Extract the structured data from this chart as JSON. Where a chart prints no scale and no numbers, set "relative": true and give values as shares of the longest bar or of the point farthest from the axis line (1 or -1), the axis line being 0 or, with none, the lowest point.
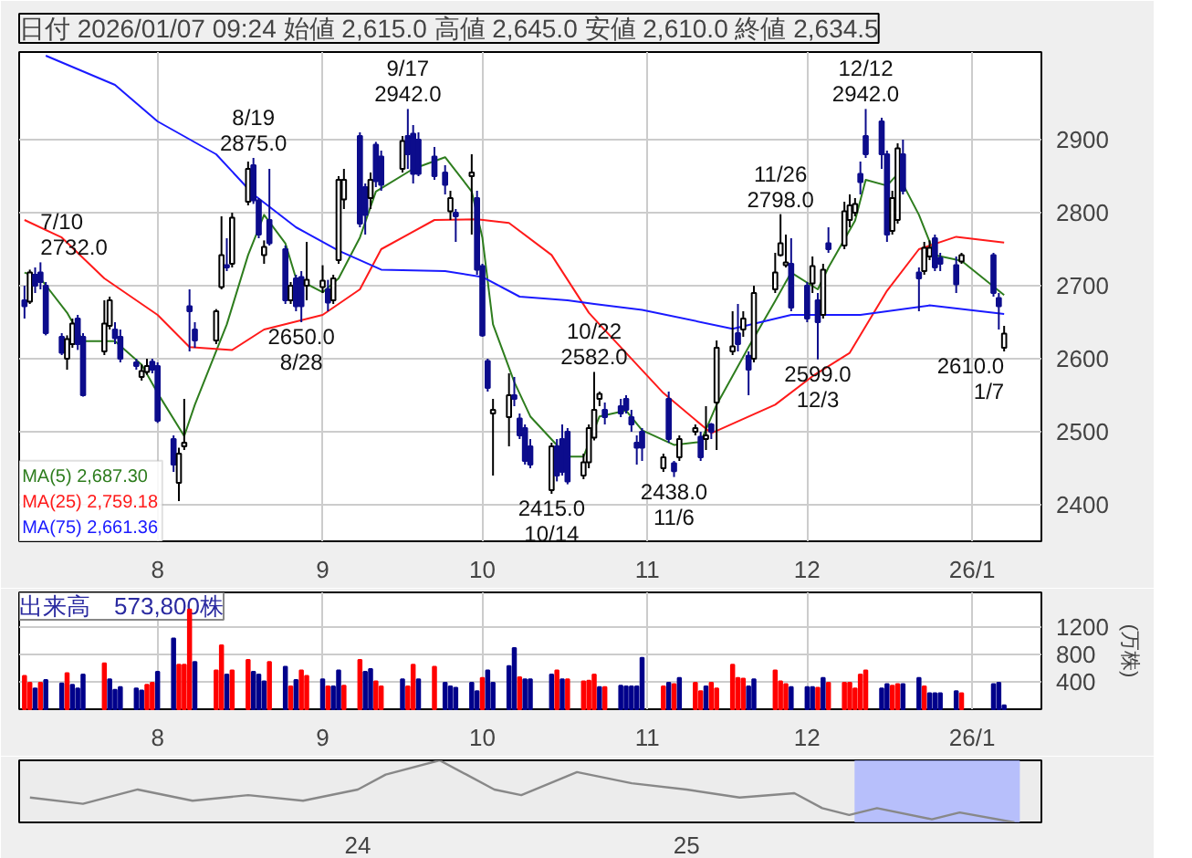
{
  "chart_data": [
    {
      "type": "candlestick",
      "title": "日付 2026/01/07 09:24 始値 2,615.0 高値 2,645.0 安値 2,610.0 終値 2,634.5",
      "grid": true,
      "legend": "bottom left",
      "colors": [
        "#0c0c8c",
        "#ffffff",
        "#0c0c8c",
        "#0c0c8c",
        "#0c0c8c",
        "#0c0c8c",
        "#ffffff",
        "#ffffff",
        "#0c0c8c",
        "#0c0c8c",
        "#ffffff",
        "#ffffff",
        "#0c0c8c",
        "#0c0c8c",
        "#0c0c8c",
        "#ffffff",
        "#ffffff",
        "#0c0c8c",
        "#0c0c8c",
        "#0c0c8c",
        "#ffffff",
        "#ffffff",
        "#0c0c8c",
        "#0c0c8c",
        "#ffffff",
        "#ffffff",
        "#0c0c8c",
        "#ffffff",
        "#ffffff",
        "#0c0c8c",
        "#0c0c8c",
        "#ffffff",
        "#0c0c8c",
        "#0c0c8c",
        "#ffffff",
        "#0c0c8c",
        "#0c0c8c",
        "#ffffff",
        "#ffffff",
        "#0c0c8c",
        "#ffffff",
        "#ffffff",
        "#ffffff",
        "#0c0c8c",
        "#0c0c8c",
        "#ffffff",
        "#0c0c8c",
        "#0c0c8c",
        "#ffffff",
        "#0c0c8c",
        "#0c0c8c",
        "#0c0c8c",
        "#0c0c8c",
        "#0c0c8c",
        "#ffffff",
        "#0c0c8c",
        "#ffffff",
        "#0c0c8c",
        "#0c0c8c",
        "#0c0c8c",
        "#ffffff",
        "#ffffff",
        "#0c0c8c",
        "#0c0c8c",
        "#0c0c8c",
        "#0c0c8c",
        "#ffffff",
        "#0c0c8c",
        "#0c0c8c",
        "#0c0c8c",
        "#ffffff",
        "#ffffff",
        "#ffffff",
        "#ffffff",
        "#0c0c8c",
        "#0c0c8c",
        "#0c0c8c",
        "#0c0c8c",
        "#0c0c8c",
        "#0c0c8c",
        "#ffffff",
        "#0c0c8c",
        "#0c0c8c",
        "#ffffff",
        "#ffffff",
        "#0c0c8c",
        "#ffffff",
        "#0c0c8c",
        "#ffffff",
        "#ffffff",
        "#0c0c8c",
        "#ffffff",
        "#0c0c8c",
        "#ffffff",
        "#ffffff",
        "#ffffff",
        "#ffffff",
        "#0c0c8c",
        "#0c0c8c",
        "#ffffff",
        "#0c0c8c",
        "#ffffff",
        "#0c0c8c",
        "#ffffff",
        "#ffffff",
        "#ffffff",
        "#0c0c8c",
        "#0c0c8c",
        "#0c0c8c",
        "#0c0c8c",
        "#ffffff",
        "#ffffff",
        "#0c0c8c",
        "#0c0c8c",
        "#ffffff",
        "#ffffff",
        "#0c0c8c",
        "#0c0c8c",
        "#0c0c8c",
        "#ffffff",
        "#0c0c8c",
        "#0c0c8c",
        "#ffffff"
      ],
      "x": [
        "2025-07-07",
        "2025-07-08",
        "2025-07-09",
        "2025-07-10",
        "2025-07-11",
        "2025-07-14",
        "2025-07-15",
        "2025-07-16",
        "2025-07-17",
        "2025-07-18",
        "2025-07-22",
        "2025-07-23",
        "2025-07-24",
        "2025-07-25",
        "2025-07-28",
        "2025-07-29",
        "2025-07-30",
        "2025-07-31",
        "2025-08-01",
        "2025-08-04",
        "2025-08-05",
        "2025-08-06",
        "2025-08-07",
        "2025-08-08",
        "2025-08-12",
        "2025-08-13",
        "2025-08-14",
        "2025-08-15",
        "2025-08-18",
        "2025-08-19",
        "2025-08-20",
        "2025-08-21",
        "2025-08-22",
        "2025-08-25",
        "2025-08-26",
        "2025-08-27",
        "2025-08-28",
        "2025-08-29",
        "2025-09-01",
        "2025-09-02",
        "2025-09-03",
        "2025-09-04",
        "2025-09-05",
        "2025-09-08",
        "2025-09-09",
        "2025-09-10",
        "2025-09-11",
        "2025-09-12",
        "2025-09-16",
        "2025-09-17",
        "2025-09-18",
        "2025-09-19",
        "2025-09-22",
        "2025-09-24",
        "2025-09-25",
        "2025-09-26",
        "2025-09-29",
        "2025-09-30",
        "2025-10-01",
        "2025-10-02",
        "2025-10-03",
        "2025-10-06",
        "2025-10-07",
        "2025-10-08",
        "2025-10-09",
        "2025-10-10",
        "2025-10-14",
        "2025-10-15",
        "2025-10-16",
        "2025-10-17",
        "2025-10-20",
        "2025-10-21",
        "2025-10-22",
        "2025-10-23",
        "2025-10-24",
        "2025-10-27",
        "2025-10-28",
        "2025-10-29",
        "2025-10-30",
        "2025-10-31",
        "2025-11-04",
        "2025-11-05",
        "2025-11-06",
        "2025-11-07",
        "2025-11-10",
        "2025-11-11",
        "2025-11-12",
        "2025-11-13",
        "2025-11-14",
        "2025-11-17",
        "2025-11-18",
        "2025-11-19",
        "2025-11-20",
        "2025-11-21",
        "2025-11-25",
        "2025-11-26",
        "2025-11-27",
        "2025-11-28",
        "2025-12-01",
        "2025-12-02",
        "2025-12-03",
        "2025-12-04",
        "2025-12-05",
        "2025-12-08",
        "2025-12-09",
        "2025-12-10",
        "2025-12-11",
        "2025-12-12",
        "2025-12-15",
        "2025-12-16",
        "2025-12-17",
        "2025-12-18",
        "2025-12-19",
        "2025-12-22",
        "2025-12-23",
        "2025-12-24",
        "2025-12-25",
        "2025-12-26",
        "2025-12-29",
        "2025-12-30",
        "2026-01-05",
        "2026-01-06",
        "2026-01-07"
      ],
      "ohlc": [
        [
          2680,
          2700,
          2655,
          2672
        ],
        [
          2678,
          2722,
          2675,
          2718
        ],
        [
          2715,
          2725,
          2690,
          2700
        ],
        [
          2718,
          2732,
          2695,
          2705
        ],
        [
          2700,
          2705,
          2632,
          2635
        ],
        [
          2630,
          2635,
          2605,
          2608
        ],
        [
          2600,
          2632,
          2585,
          2627
        ],
        [
          2620,
          2655,
          2615,
          2648
        ],
        [
          2655,
          2660,
          2612,
          2620
        ],
        [
          2630,
          2635,
          2548,
          2550
        ],
        [
          2610,
          2680,
          2605,
          2648
        ],
        [
          2645,
          2685,
          2640,
          2680
        ],
        [
          2640,
          2650,
          2620,
          2628
        ],
        [
          2630,
          2640,
          2595,
          2600
        ],
        [
          2595,
          2600,
          2585,
          2590
        ],
        [
          2575,
          2592,
          2570,
          2583
        ],
        [
          2582,
          2600,
          2578,
          2590
        ],
        [
          2596,
          2600,
          2580,
          2585
        ],
        [
          2590,
          2595,
          2512,
          2515
        ],
        [
          2490,
          2495,
          2445,
          2455
        ],
        [
          2430,
          2478,
          2405,
          2470
        ],
        [
          2480,
          2545,
          2475,
          2485
        ],
        [
          2672,
          2695,
          2610,
          2665
        ],
        [
          2640,
          2650,
          2615,
          2625
        ],
        [
          2625,
          2668,
          2620,
          2665
        ],
        [
          2698,
          2795,
          2695,
          2742
        ],
        [
          2728,
          2765,
          2720,
          2725
        ],
        [
          2730,
          2800,
          2725,
          2793
        ],
        [
          2815,
          2870,
          2810,
          2860
        ],
        [
          2865,
          2875,
          2812,
          2817
        ],
        [
          2817,
          2820,
          2765,
          2770
        ],
        [
          2742,
          2762,
          2730,
          2753
        ],
        [
          2790,
          2860,
          2755,
          2758
        ],
        [
          2750,
          2755,
          2675,
          2680
        ],
        [
          2680,
          2705,
          2675,
          2700
        ],
        [
          2710,
          2715,
          2665,
          2672
        ],
        [
          2712,
          2720,
          2650,
          2672
        ],
        [
          2700,
          2760,
          2680,
          2708
        ],
        [
          2698,
          2728,
          2690,
          2707
        ],
        [
          2695,
          2708,
          2665,
          2677
        ],
        [
          2680,
          2715,
          2675,
          2710
        ],
        [
          2735,
          2850,
          2730,
          2845
        ],
        [
          2818,
          2860,
          2805,
          2845
        ],
        [
          2905,
          2910,
          2780,
          2785
        ],
        [
          2835,
          2840,
          2770,
          2797
        ],
        [
          2820,
          2855,
          2805,
          2845
        ],
        [
          2893,
          2897,
          2835,
          2843
        ],
        [
          2877,
          2885,
          2830,
          2838
        ],
        [
          2860,
          2905,
          2855,
          2898
        ],
        [
          2905,
          2942,
          2860,
          2880
        ],
        [
          2908,
          2920,
          2840,
          2853
        ],
        [
          2900,
          2910,
          2850,
          2853
        ],
        [
          2877,
          2890,
          2845,
          2850
        ],
        [
          2855,
          2865,
          2825,
          2838
        ],
        [
          2802,
          2830,
          2790,
          2820
        ],
        [
          2800,
          2805,
          2760,
          2795
        ],
        [
          2850,
          2880,
          2770,
          2855
        ],
        [
          2820,
          2830,
          2715,
          2722
        ],
        [
          2727,
          2730,
          2630,
          2632
        ],
        [
          2597,
          2600,
          2555,
          2560
        ],
        [
          2525,
          2545,
          2440,
          2530
        ],
        [
          2520,
          2580,
          2480,
          2550
        ],
        [
          2550,
          2575,
          2535,
          2545
        ],
        [
          2518,
          2525,
          2490,
          2495
        ],
        [
          2505,
          2510,
          2455,
          2460
        ],
        [
          2480,
          2490,
          2450,
          2455
        ],
        [
          2420,
          2485,
          2415,
          2480
        ],
        [
          2480,
          2490,
          2432,
          2440
        ],
        [
          2490,
          2510,
          2440,
          2445
        ],
        [
          2500,
          2505,
          2428,
          2432
        ],
        [
          2440,
          2470,
          2435,
          2458
        ],
        [
          2458,
          2510,
          2450,
          2505
        ],
        [
          2492,
          2582,
          2488,
          2530
        ],
        [
          2545,
          2555,
          2535,
          2552
        ],
        [
          2530,
          2540,
          2510,
          2520
        ],
        [
          2535,
          2545,
          2520,
          2525
        ],
        [
          2545,
          2550,
          2525,
          2530
        ],
        [
          2520,
          2530,
          2500,
          2510
        ],
        [
          2485,
          2495,
          2455,
          2478
        ],
        [
          2500,
          2505,
          2460,
          2478
        ],
        [
          2450,
          2470,
          2445,
          2465
        ],
        [
          2545,
          2555,
          2485,
          2490
        ],
        [
          2457,
          2460,
          2438,
          2446
        ],
        [
          2465,
          2495,
          2460,
          2490
        ],
        [
          2500,
          2510,
          2495,
          2505
        ],
        [
          2493,
          2500,
          2460,
          2465
        ],
        [
          2490,
          2535,
          2475,
          2495
        ],
        [
          2510,
          2512,
          2490,
          2500
        ],
        [
          2540,
          2625,
          2475,
          2615
        ],
        [
          2610,
          2665,
          2605,
          2617
        ],
        [
          2635,
          2675,
          2610,
          2620
        ],
        [
          2640,
          2665,
          2630,
          2655
        ],
        [
          2604,
          2610,
          2550,
          2585
        ],
        [
          2600,
          2700,
          2595,
          2690
        ],
        [
          2695,
          2745,
          2690,
          2718
        ],
        [
          2742,
          2798,
          2740,
          2758
        ],
        [
          2728,
          2770,
          2725,
          2732
        ],
        [
          2730,
          2765,
          2665,
          2670
        ],
        [
          2700,
          2705,
          2650,
          2655
        ],
        [
          2703,
          2740,
          2690,
          2727
        ],
        [
          2680,
          2690,
          2599,
          2650
        ],
        [
          2660,
          2730,
          2655,
          2722
        ],
        [
          2758,
          2780,
          2745,
          2750
        ],
        [
          2755,
          2815,
          2750,
          2802
        ],
        [
          2790,
          2825,
          2780,
          2810
        ],
        [
          2800,
          2820,
          2795,
          2812
        ],
        [
          2853,
          2870,
          2825,
          2842
        ],
        [
          2905,
          2942,
          2875,
          2880
        ],
        [
          2925,
          2930,
          2860,
          2880
        ],
        [
          2880,
          2885,
          2760,
          2770
        ],
        [
          2775,
          2830,
          2770,
          2820
        ],
        [
          2790,
          2895,
          2785,
          2888
        ],
        [
          2880,
          2900,
          2825,
          2830
        ],
        [
          2718,
          2725,
          2665,
          2710
        ],
        [
          2720,
          2760,
          2715,
          2752
        ],
        [
          2740,
          2762,
          2735,
          2752
        ],
        [
          2765,
          2770,
          2720,
          2725
        ],
        [
          2738,
          2745,
          2720,
          2730
        ],
        [
          2728,
          2740,
          2690,
          2702
        ],
        [
          2733,
          2745,
          2730,
          2742
        ],
        [
          2742,
          2745,
          2685,
          2690
        ],
        [
          2683,
          2690,
          2640,
          2672
        ],
        [
          2615,
          2645,
          2610,
          2634.5
        ]
      ],
      "series": [
        {
          "type": "line",
          "name": "MA(5) 2,687.30",
          "color": "#2e7d1e",
          "x": [
            "2025-07-07",
            "2025-07-10",
            "2025-07-15",
            "2025-07-18",
            "2025-07-24",
            "2025-07-29",
            "2025-08-01",
            "2025-08-06",
            "2025-08-08",
            "2025-08-14",
            "2025-08-18",
            "2025-08-21",
            "2025-08-25",
            "2025-08-27",
            "2025-09-01",
            "2025-09-04",
            "2025-09-08",
            "2025-09-11",
            "2025-09-18",
            "2025-09-24",
            "2025-09-29",
            "2025-10-01",
            "2025-10-03",
            "2025-10-07",
            "2025-10-10",
            "2025-10-17",
            "2025-10-20",
            "2025-10-23",
            "2025-10-28",
            "2025-10-31",
            "2025-11-06",
            "2025-11-11",
            "2025-11-14",
            "2025-11-20",
            "2025-11-25",
            "2025-11-28",
            "2025-12-03",
            "2025-12-05",
            "2025-12-10",
            "2025-12-12",
            "2025-12-16",
            "2025-12-18",
            "2025-12-22",
            "2025-12-25",
            "2025-12-30",
            "2026-01-07"
          ],
          "values": [
            2718,
            2710,
            2663,
            2624,
            2624,
            2592,
            2553,
            2494,
            2537,
            2647,
            2742,
            2797,
            2758,
            2710,
            2691,
            2710,
            2766,
            2829,
            2860,
            2876,
            2829,
            2766,
            2647,
            2568,
            2521,
            2466,
            2466,
            2521,
            2529,
            2502,
            2482,
            2486,
            2537,
            2616,
            2679,
            2718,
            2695,
            2725,
            2789,
            2845,
            2837,
            2853,
            2797,
            2742,
            2734,
            2687.3
          ]
        },
        {
          "type": "line",
          "name": "MA(25) 2,759.18",
          "color": "#ff1a1a",
          "x": [
            "2025-07-07",
            "2025-07-14",
            "2025-07-22",
            "2025-08-01",
            "2025-08-07",
            "2025-08-15",
            "2025-08-21",
            "2025-09-01",
            "2025-09-08",
            "2025-09-12",
            "2025-09-22",
            "2025-09-30",
            "2025-10-06",
            "2025-10-14",
            "2025-10-21",
            "2025-10-23",
            "2025-11-04",
            "2025-11-13",
            "2025-11-25",
            "2025-12-02",
            "2025-12-09",
            "2025-12-16",
            "2025-12-22",
            "2025-12-29",
            "2026-01-07"
          ],
          "values": [
            2790,
            2766,
            2710,
            2660,
            2616,
            2612,
            2640,
            2660,
            2695,
            2750,
            2790,
            2791,
            2786,
            2742,
            2663,
            2647,
            2553,
            2498,
            2537,
            2576,
            2608,
            2693,
            2750,
            2767,
            2759.18
          ]
        },
        {
          "type": "line",
          "name": "MA(75) 2,661.36",
          "color": "#1a1aff",
          "x": [
            "2025-07-11",
            "2025-07-24",
            "2025-08-01",
            "2025-08-12",
            "2025-08-19",
            "2025-08-27",
            "2025-09-04",
            "2025-09-12",
            "2025-09-24",
            "2025-10-01",
            "2025-10-08",
            "2025-10-17",
            "2025-10-22",
            "2025-10-31",
            "2025-11-17",
            "2025-11-28",
            "2025-12-11",
            "2025-12-24",
            "2026-01-07"
          ],
          "values": [
            3015,
            2975,
            2925,
            2880,
            2825,
            2780,
            2748,
            2722,
            2720,
            2712,
            2685,
            2680,
            2675,
            2667,
            2641,
            2660,
            2660,
            2673,
            2661.36
          ]
        }
      ],
      "ylim": [
        2350,
        3020
      ],
      "yticks": [
        2400,
        2500,
        2600,
        2700,
        2800,
        2900
      ],
      "xlim": [
        "2025-07-06",
        "2026-01-14"
      ],
      "xticks": [
        {
          "value": "2025-08-01",
          "label": "8"
        },
        {
          "value": "2025-09-01",
          "label": "9"
        },
        {
          "value": "2025-10-01",
          "label": "10"
        },
        {
          "value": "2025-11-01",
          "label": "11"
        },
        {
          "value": "2025-12-01",
          "label": "12"
        },
        {
          "value": "2026-01-01",
          "label": "26/1"
        }
      ],
      "annotations": [
        {
          "text": "7/10\n2732.0",
          "x": "2025-07-10",
          "y": 2732
        },
        {
          "text": "8/19\n2875.0",
          "x": "2025-08-19",
          "y": 2875
        },
        {
          "text": "2650.0\n8/28",
          "x": "2025-08-28",
          "y": 2650
        },
        {
          "text": "9/17\n2942.0",
          "x": "2025-09-17",
          "y": 2942
        },
        {
          "text": "2415.0\n10/14",
          "x": "2025-10-14",
          "y": 2415
        },
        {
          "text": "10/22\n2582.0",
          "x": "2025-10-22",
          "y": 2582
        },
        {
          "text": "2438.0\n11/6",
          "x": "2025-11-06",
          "y": 2438
        },
        {
          "text": "11/26\n2798.0",
          "x": "2025-11-26",
          "y": 2798
        },
        {
          "text": "2599.0\n12/3",
          "x": "2025-12-03",
          "y": 2599
        },
        {
          "text": "12/12\n2942.0",
          "x": "2025-12-12",
          "y": 2942
        },
        {
          "text": "2610.0\n1/7",
          "x": "2026-01-07",
          "y": 2610
        }
      ]
    },
    {
      "type": "bar",
      "title": "出来高　573,800株",
      "ylabel": "(万株)",
      "grid": true,
      "x": [
        "2025-07-07",
        "2025-07-08",
        "2025-07-09",
        "2025-07-10",
        "2025-07-11",
        "2025-07-14",
        "2025-07-15",
        "2025-07-16",
        "2025-07-17",
        "2025-07-18",
        "2025-07-22",
        "2025-07-23",
        "2025-07-24",
        "2025-07-25",
        "2025-07-28",
        "2025-07-29",
        "2025-07-30",
        "2025-07-31",
        "2025-08-01",
        "2025-08-04",
        "2025-08-05",
        "2025-08-06",
        "2025-08-07",
        "2025-08-08",
        "2025-08-12",
        "2025-08-13",
        "2025-08-14",
        "2025-08-15",
        "2025-08-18",
        "2025-08-19",
        "2025-08-20",
        "2025-08-21",
        "2025-08-22",
        "2025-08-25",
        "2025-08-26",
        "2025-08-27",
        "2025-08-28",
        "2025-08-29",
        "2025-09-01",
        "2025-09-02",
        "2025-09-03",
        "2025-09-04",
        "2025-09-05",
        "2025-09-08",
        "2025-09-09",
        "2025-09-10",
        "2025-09-11",
        "2025-09-12",
        "2025-09-16",
        "2025-09-17",
        "2025-09-18",
        "2025-09-19",
        "2025-09-22",
        "2025-09-24",
        "2025-09-25",
        "2025-09-26",
        "2025-09-29",
        "2025-09-30",
        "2025-10-01",
        "2025-10-02",
        "2025-10-03",
        "2025-10-06",
        "2025-10-07",
        "2025-10-08",
        "2025-10-09",
        "2025-10-10",
        "2025-10-14",
        "2025-10-15",
        "2025-10-16",
        "2025-10-17",
        "2025-10-20",
        "2025-10-21",
        "2025-10-22",
        "2025-10-23",
        "2025-10-24",
        "2025-10-27",
        "2025-10-28",
        "2025-10-29",
        "2025-10-30",
        "2025-10-31",
        "2025-11-04",
        "2025-11-05",
        "2025-11-06",
        "2025-11-07",
        "2025-11-10",
        "2025-11-11",
        "2025-11-12",
        "2025-11-13",
        "2025-11-14",
        "2025-11-17",
        "2025-11-18",
        "2025-11-19",
        "2025-11-20",
        "2025-11-21",
        "2025-11-25",
        "2025-11-26",
        "2025-11-27",
        "2025-11-28",
        "2025-12-01",
        "2025-12-02",
        "2025-12-03",
        "2025-12-04",
        "2025-12-05",
        "2025-12-08",
        "2025-12-09",
        "2025-12-10",
        "2025-12-11",
        "2025-12-12",
        "2025-12-15",
        "2025-12-16",
        "2025-12-17",
        "2025-12-18",
        "2025-12-19",
        "2025-12-22",
        "2025-12-23",
        "2025-12-24",
        "2025-12-25",
        "2025-12-26",
        "2025-12-29",
        "2025-12-30",
        "2026-01-05",
        "2026-01-06",
        "2026-01-07"
      ],
      "values": [
        485,
        384,
        303,
        384,
        424,
        374,
        525,
        354,
        303,
        505,
        667,
        434,
        283,
        323,
        303,
        273,
        354,
        384,
        545,
        1030,
        646,
        646,
        1450,
        687,
        566,
        929,
        505,
        566,
        717,
        545,
        505,
        404,
        687,
        616,
        333,
        424,
        566,
        485,
        434,
        333,
        333,
        566,
        343,
        717,
        545,
        586,
        404,
        333,
        434,
        333,
        646,
        434,
        616,
        384,
        333,
        313,
        384,
        263,
        455,
        566,
        384,
        626,
        889,
        465,
        434,
        434,
        505,
        566,
        434,
        434,
        404,
        414,
        505,
        323,
        323,
        343,
        333,
        333,
        333,
        747,
        333,
        384,
        364,
        455,
        384,
        263,
        333,
        384,
        303,
        646,
        455,
        444,
        333,
        434,
        566,
        404,
        364,
        323,
        323,
        323,
        313,
        455,
        384,
        384,
        384,
        303,
        505,
        566,
        303,
        364,
        343,
        364,
        364,
        455,
        333,
        232,
        232,
        232,
        263,
        232,
        364,
        384,
        57.38
      ],
      "colors": [
        "#ff0000",
        "#ff0000",
        "#00008b",
        "#ff0000",
        "#00008b",
        "#00008b",
        "#ff0000",
        "#00008b",
        "#00008b",
        "#00008b",
        "#ff0000",
        "#00008b",
        "#00008b",
        "#00008b",
        "#00008b",
        "#00008b",
        "#ff0000",
        "#ff0000",
        "#00008b",
        "#00008b",
        "#ff0000",
        "#ff0000",
        "#ff0000",
        "#00008b",
        "#ff0000",
        "#ff0000",
        "#00008b",
        "#ff0000",
        "#ff0000",
        "#00008b",
        "#00008b",
        "#00008b",
        "#ff0000",
        "#00008b",
        "#ff0000",
        "#00008b",
        "#ff0000",
        "#ff0000",
        "#00008b",
        "#ff0000",
        "#00008b",
        "#00008b",
        "#ff0000",
        "#ff0000",
        "#00008b",
        "#00008b",
        "#ff0000",
        "#ff0000",
        "#00008b",
        "#ff0000",
        "#ff0000",
        "#00008b",
        "#ff0000",
        "#00008b",
        "#00008b",
        "#00008b",
        "#00008b",
        "#00008b",
        "#ff0000",
        "#00008b",
        "#00008b",
        "#00008b",
        "#00008b",
        "#ff0000",
        "#00008b",
        "#00008b",
        "#00008b",
        "#ff0000",
        "#00008b",
        "#ff0000",
        "#ff0000",
        "#ff0000",
        "#ff0000",
        "#00008b",
        "#ff0000",
        "#00008b",
        "#00008b",
        "#00008b",
        "#00008b",
        "#00008b",
        "#ff0000",
        "#00008b",
        "#ff0000",
        "#00008b",
        "#ff0000",
        "#ff0000",
        "#00008b",
        "#ff0000",
        "#ff0000",
        "#ff0000",
        "#ff0000",
        "#ff0000",
        "#00008b",
        "#00008b",
        "#ff0000",
        "#ff0000",
        "#ff0000",
        "#00008b",
        "#00008b",
        "#00008b",
        "#ff0000",
        "#00008b",
        "#ff0000",
        "#ff0000",
        "#ff0000",
        "#ff0000",
        "#ff0000",
        "#ff0000",
        "#00008b",
        "#00008b",
        "#ff0000",
        "#ff0000",
        "#00008b",
        "#00008b",
        "#ff0000",
        "#00008b",
        "#00008b",
        "#00008b",
        "#00008b",
        "#ff0000",
        "#00008b",
        "#00008b",
        "#00008b"
      ],
      "ylim": [
        0,
        1700
      ],
      "yticks": [
        400,
        800,
        1200
      ],
      "xlim": [
        "2025-07-06",
        "2026-01-14"
      ],
      "xticks": [
        {
          "value": "2025-08-01",
          "label": "8"
        },
        {
          "value": "2025-09-01",
          "label": "9"
        },
        {
          "value": "2025-10-01",
          "label": "10"
        },
        {
          "value": "2025-11-01",
          "label": "11"
        },
        {
          "value": "2025-12-01",
          "label": "12"
        },
        {
          "value": "2026-01-01",
          "label": "26/1"
        }
      ]
    },
    {
      "type": "line",
      "relative": true,
      "color": "#888888",
      "x": [
        "2023-01",
        "2023-03",
        "2023-05",
        "2023-07",
        "2023-09",
        "2023-11",
        "2024-01",
        "2024-02",
        "2024-04",
        "2024-05",
        "2024-06",
        "2024-07",
        "2024-09",
        "2024-11",
        "2025-01",
        "2025-03",
        "2025-05",
        "2025-06",
        "2025-07",
        "2025-08",
        "2025-10",
        "2025-11",
        "2026-01"
      ],
      "values": [
        0.4,
        0.3,
        0.53,
        0.35,
        0.44,
        0.35,
        0.53,
        0.77,
        1,
        0.77,
        0.53,
        0.44,
        0.81,
        0.63,
        0.53,
        0.4,
        0.47,
        0.23,
        0.12,
        0.23,
        0.05,
        0.16,
        0
      ],
      "xlim": [
        "2022-12-20",
        "2026-01-31"
      ],
      "xticks": [
        {
          "value": "2024-01-01",
          "label": "24"
        },
        {
          "value": "2025-01-01",
          "label": "25"
        }
      ],
      "bands": [
        {
          "axis": "x",
          "from": "2025-07-07",
          "to": "2026-01-07",
          "color": "#aab4ff"
        }
      ]
    }
  ]
}
